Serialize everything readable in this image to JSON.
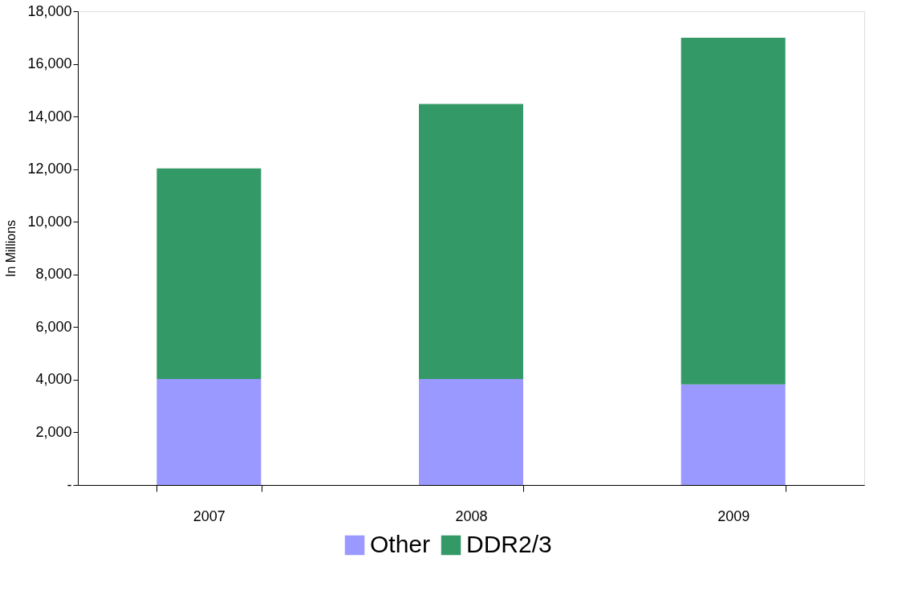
{
  "chart_data": {
    "type": "bar",
    "stacked": true,
    "ylabel": "In Millions",
    "categories": [
      "2007",
      "2008",
      "2009"
    ],
    "series": [
      {
        "name": "Other",
        "color": "#9999ff",
        "values": [
          4030,
          4030,
          3820
        ]
      },
      {
        "name": "DDR2/3",
        "color": "#339966",
        "values": [
          8000,
          10450,
          13170
        ]
      }
    ],
    "ylim": [
      0,
      18000
    ],
    "yticks": [
      {
        "value": 0,
        "label": "-"
      },
      {
        "value": 2000,
        "label": "2,000"
      },
      {
        "value": 4000,
        "label": "4,000"
      },
      {
        "value": 6000,
        "label": "6,000"
      },
      {
        "value": 8000,
        "label": "8,000"
      },
      {
        "value": 10000,
        "label": "10,000"
      },
      {
        "value": 12000,
        "label": "12,000"
      },
      {
        "value": 14000,
        "label": "14,000"
      },
      {
        "value": 16000,
        "label": "16,000"
      },
      {
        "value": 18000,
        "label": "18,000"
      }
    ],
    "grid": false,
    "legend": "bottom"
  }
}
